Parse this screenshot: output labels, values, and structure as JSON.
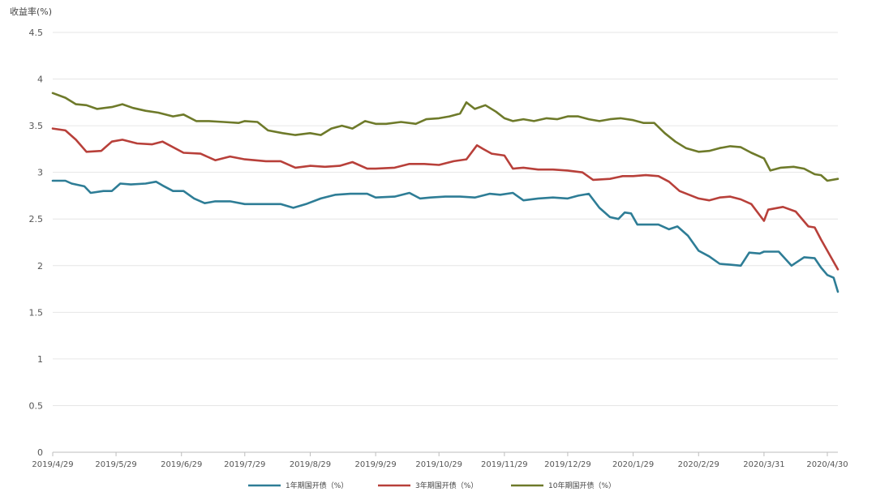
{
  "chart_data": {
    "type": "line",
    "ylabel": "收益率(%)",
    "ylim": [
      0,
      4.5
    ],
    "yticks": [
      "0",
      "0.5",
      "1",
      "1.5",
      "2",
      "2.5",
      "3",
      "3.5",
      "4",
      "4.5"
    ],
    "x_ticks": [
      "2019/4/29",
      "2019/5/29",
      "2019/6/29",
      "2019/7/29",
      "2019/8/29",
      "2019/9/29",
      "2019/10/29",
      "2019/11/29",
      "2019/12/29",
      "2020/1/29",
      "2020/2/29",
      "2020/3/31",
      "2020/4/30"
    ],
    "xlim": [
      "2019-04-29",
      "2020-05-05"
    ],
    "grid": "horizontal",
    "legend": "bottom",
    "series": [
      {
        "name": "1年期国开债（%）",
        "color": "#2e7d96",
        "points": [
          [
            "2019-04-29",
            2.91
          ],
          [
            "2019-05-05",
            2.91
          ],
          [
            "2019-05-08",
            2.88
          ],
          [
            "2019-05-14",
            2.85
          ],
          [
            "2019-05-17",
            2.78
          ],
          [
            "2019-05-23",
            2.8
          ],
          [
            "2019-05-27",
            2.8
          ],
          [
            "2019-05-31",
            2.88
          ],
          [
            "2019-06-05",
            2.87
          ],
          [
            "2019-06-12",
            2.88
          ],
          [
            "2019-06-17",
            2.9
          ],
          [
            "2019-06-20",
            2.86
          ],
          [
            "2019-06-25",
            2.8
          ],
          [
            "2019-06-30",
            2.8
          ],
          [
            "2019-07-05",
            2.72
          ],
          [
            "2019-07-10",
            2.67
          ],
          [
            "2019-07-15",
            2.69
          ],
          [
            "2019-07-22",
            2.69
          ],
          [
            "2019-07-29",
            2.66
          ],
          [
            "2019-08-08",
            2.66
          ],
          [
            "2019-08-15",
            2.66
          ],
          [
            "2019-08-21",
            2.62
          ],
          [
            "2019-08-27",
            2.66
          ],
          [
            "2019-09-03",
            2.72
          ],
          [
            "2019-09-10",
            2.76
          ],
          [
            "2019-09-17",
            2.77
          ],
          [
            "2019-09-25",
            2.77
          ],
          [
            "2019-09-29",
            2.73
          ],
          [
            "2019-10-08",
            2.74
          ],
          [
            "2019-10-15",
            2.78
          ],
          [
            "2019-10-20",
            2.72
          ],
          [
            "2019-10-25",
            2.73
          ],
          [
            "2019-11-01",
            2.74
          ],
          [
            "2019-11-08",
            2.74
          ],
          [
            "2019-11-15",
            2.73
          ],
          [
            "2019-11-22",
            2.77
          ],
          [
            "2019-11-27",
            2.76
          ],
          [
            "2019-12-03",
            2.78
          ],
          [
            "2019-12-08",
            2.7
          ],
          [
            "2019-12-15",
            2.72
          ],
          [
            "2019-12-22",
            2.73
          ],
          [
            "2019-12-29",
            2.72
          ],
          [
            "2020-01-03",
            2.75
          ],
          [
            "2020-01-08",
            2.77
          ],
          [
            "2020-01-13",
            2.62
          ],
          [
            "2020-01-18",
            2.52
          ],
          [
            "2020-01-22",
            2.5
          ],
          [
            "2020-01-25",
            2.57
          ],
          [
            "2020-01-28",
            2.56
          ],
          [
            "2020-01-31",
            2.44
          ],
          [
            "2020-02-04",
            2.44
          ],
          [
            "2020-02-10",
            2.44
          ],
          [
            "2020-02-15",
            2.39
          ],
          [
            "2020-02-19",
            2.42
          ],
          [
            "2020-02-24",
            2.32
          ],
          [
            "2020-02-29",
            2.16
          ],
          [
            "2020-03-05",
            2.1
          ],
          [
            "2020-03-10",
            2.02
          ],
          [
            "2020-03-15",
            2.01
          ],
          [
            "2020-03-20",
            2.0
          ],
          [
            "2020-03-24",
            2.14
          ],
          [
            "2020-03-29",
            2.13
          ],
          [
            "2020-03-31",
            2.15
          ],
          [
            "2020-04-07",
            2.15
          ],
          [
            "2020-04-13",
            2.0
          ],
          [
            "2020-04-19",
            2.09
          ],
          [
            "2020-04-24",
            2.08
          ],
          [
            "2020-04-27",
            1.98
          ],
          [
            "2020-04-30",
            1.9
          ],
          [
            "2020-05-03",
            1.87
          ],
          [
            "2020-05-05",
            1.72
          ]
        ]
      },
      {
        "name": "3年期国开债（%）",
        "color": "#b8403a",
        "points": [
          [
            "2019-04-29",
            3.47
          ],
          [
            "2019-05-05",
            3.45
          ],
          [
            "2019-05-10",
            3.35
          ],
          [
            "2019-05-15",
            3.22
          ],
          [
            "2019-05-22",
            3.23
          ],
          [
            "2019-05-27",
            3.33
          ],
          [
            "2019-06-01",
            3.35
          ],
          [
            "2019-06-08",
            3.31
          ],
          [
            "2019-06-15",
            3.3
          ],
          [
            "2019-06-20",
            3.33
          ],
          [
            "2019-06-30",
            3.21
          ],
          [
            "2019-07-08",
            3.2
          ],
          [
            "2019-07-15",
            3.13
          ],
          [
            "2019-07-22",
            3.17
          ],
          [
            "2019-07-29",
            3.14
          ],
          [
            "2019-08-08",
            3.12
          ],
          [
            "2019-08-15",
            3.12
          ],
          [
            "2019-08-22",
            3.05
          ],
          [
            "2019-08-29",
            3.07
          ],
          [
            "2019-09-05",
            3.06
          ],
          [
            "2019-09-12",
            3.07
          ],
          [
            "2019-09-18",
            3.11
          ],
          [
            "2019-09-25",
            3.04
          ],
          [
            "2019-09-29",
            3.04
          ],
          [
            "2019-10-08",
            3.05
          ],
          [
            "2019-10-15",
            3.09
          ],
          [
            "2019-10-22",
            3.09
          ],
          [
            "2019-10-29",
            3.08
          ],
          [
            "2019-11-05",
            3.12
          ],
          [
            "2019-11-11",
            3.14
          ],
          [
            "2019-11-16",
            3.29
          ],
          [
            "2019-11-19",
            3.25
          ],
          [
            "2019-11-23",
            3.2
          ],
          [
            "2019-11-29",
            3.18
          ],
          [
            "2019-12-03",
            3.04
          ],
          [
            "2019-12-08",
            3.05
          ],
          [
            "2019-12-15",
            3.03
          ],
          [
            "2019-12-22",
            3.03
          ],
          [
            "2019-12-29",
            3.02
          ],
          [
            "2020-01-05",
            3.0
          ],
          [
            "2020-01-10",
            2.92
          ],
          [
            "2020-01-18",
            2.93
          ],
          [
            "2020-01-24",
            2.96
          ],
          [
            "2020-01-29",
            2.96
          ],
          [
            "2020-02-04",
            2.97
          ],
          [
            "2020-02-10",
            2.96
          ],
          [
            "2020-02-15",
            2.9
          ],
          [
            "2020-02-20",
            2.8
          ],
          [
            "2020-02-29",
            2.72
          ],
          [
            "2020-03-05",
            2.7
          ],
          [
            "2020-03-10",
            2.73
          ],
          [
            "2020-03-15",
            2.74
          ],
          [
            "2020-03-20",
            2.71
          ],
          [
            "2020-03-25",
            2.66
          ],
          [
            "2020-03-31",
            2.48
          ],
          [
            "2020-04-02",
            2.6
          ],
          [
            "2020-04-09",
            2.63
          ],
          [
            "2020-04-15",
            2.58
          ],
          [
            "2020-04-21",
            2.42
          ],
          [
            "2020-04-24",
            2.41
          ],
          [
            "2020-04-27",
            2.28
          ],
          [
            "2020-05-05",
            1.96
          ]
        ]
      },
      {
        "name": "10年期国开债（%）",
        "color": "#6e7a2a",
        "points": [
          [
            "2019-04-29",
            3.85
          ],
          [
            "2019-05-05",
            3.8
          ],
          [
            "2019-05-10",
            3.73
          ],
          [
            "2019-05-15",
            3.72
          ],
          [
            "2019-05-20",
            3.68
          ],
          [
            "2019-05-27",
            3.7
          ],
          [
            "2019-06-01",
            3.73
          ],
          [
            "2019-06-06",
            3.69
          ],
          [
            "2019-06-12",
            3.66
          ],
          [
            "2019-06-18",
            3.64
          ],
          [
            "2019-06-25",
            3.6
          ],
          [
            "2019-06-30",
            3.62
          ],
          [
            "2019-07-06",
            3.55
          ],
          [
            "2019-07-12",
            3.55
          ],
          [
            "2019-07-19",
            3.54
          ],
          [
            "2019-07-26",
            3.53
          ],
          [
            "2019-07-29",
            3.55
          ],
          [
            "2019-08-04",
            3.54
          ],
          [
            "2019-08-09",
            3.45
          ],
          [
            "2019-08-16",
            3.42
          ],
          [
            "2019-08-22",
            3.4
          ],
          [
            "2019-08-29",
            3.42
          ],
          [
            "2019-09-03",
            3.4
          ],
          [
            "2019-09-08",
            3.47
          ],
          [
            "2019-09-13",
            3.5
          ],
          [
            "2019-09-18",
            3.47
          ],
          [
            "2019-09-24",
            3.55
          ],
          [
            "2019-09-29",
            3.52
          ],
          [
            "2019-10-04",
            3.52
          ],
          [
            "2019-10-11",
            3.54
          ],
          [
            "2019-10-18",
            3.52
          ],
          [
            "2019-10-23",
            3.57
          ],
          [
            "2019-10-29",
            3.58
          ],
          [
            "2019-11-03",
            3.6
          ],
          [
            "2019-11-08",
            3.63
          ],
          [
            "2019-11-11",
            3.75
          ],
          [
            "2019-11-15",
            3.68
          ],
          [
            "2019-11-20",
            3.72
          ],
          [
            "2019-11-25",
            3.65
          ],
          [
            "2019-11-29",
            3.58
          ],
          [
            "2019-12-03",
            3.55
          ],
          [
            "2019-12-08",
            3.57
          ],
          [
            "2019-12-13",
            3.55
          ],
          [
            "2019-12-19",
            3.58
          ],
          [
            "2019-12-24",
            3.57
          ],
          [
            "2019-12-29",
            3.6
          ],
          [
            "2020-01-03",
            3.6
          ],
          [
            "2020-01-08",
            3.57
          ],
          [
            "2020-01-13",
            3.55
          ],
          [
            "2020-01-18",
            3.57
          ],
          [
            "2020-01-23",
            3.58
          ],
          [
            "2020-01-29",
            3.56
          ],
          [
            "2020-02-03",
            3.53
          ],
          [
            "2020-02-08",
            3.53
          ],
          [
            "2020-02-13",
            3.42
          ],
          [
            "2020-02-18",
            3.33
          ],
          [
            "2020-02-23",
            3.26
          ],
          [
            "2020-02-29",
            3.22
          ],
          [
            "2020-03-05",
            3.23
          ],
          [
            "2020-03-10",
            3.26
          ],
          [
            "2020-03-15",
            3.28
          ],
          [
            "2020-03-20",
            3.27
          ],
          [
            "2020-03-25",
            3.21
          ],
          [
            "2020-03-31",
            3.15
          ],
          [
            "2020-04-03",
            3.02
          ],
          [
            "2020-04-08",
            3.05
          ],
          [
            "2020-04-14",
            3.06
          ],
          [
            "2020-04-19",
            3.04
          ],
          [
            "2020-04-24",
            2.98
          ],
          [
            "2020-04-27",
            2.97
          ],
          [
            "2020-04-30",
            2.91
          ],
          [
            "2020-05-05",
            2.93
          ]
        ]
      }
    ]
  }
}
